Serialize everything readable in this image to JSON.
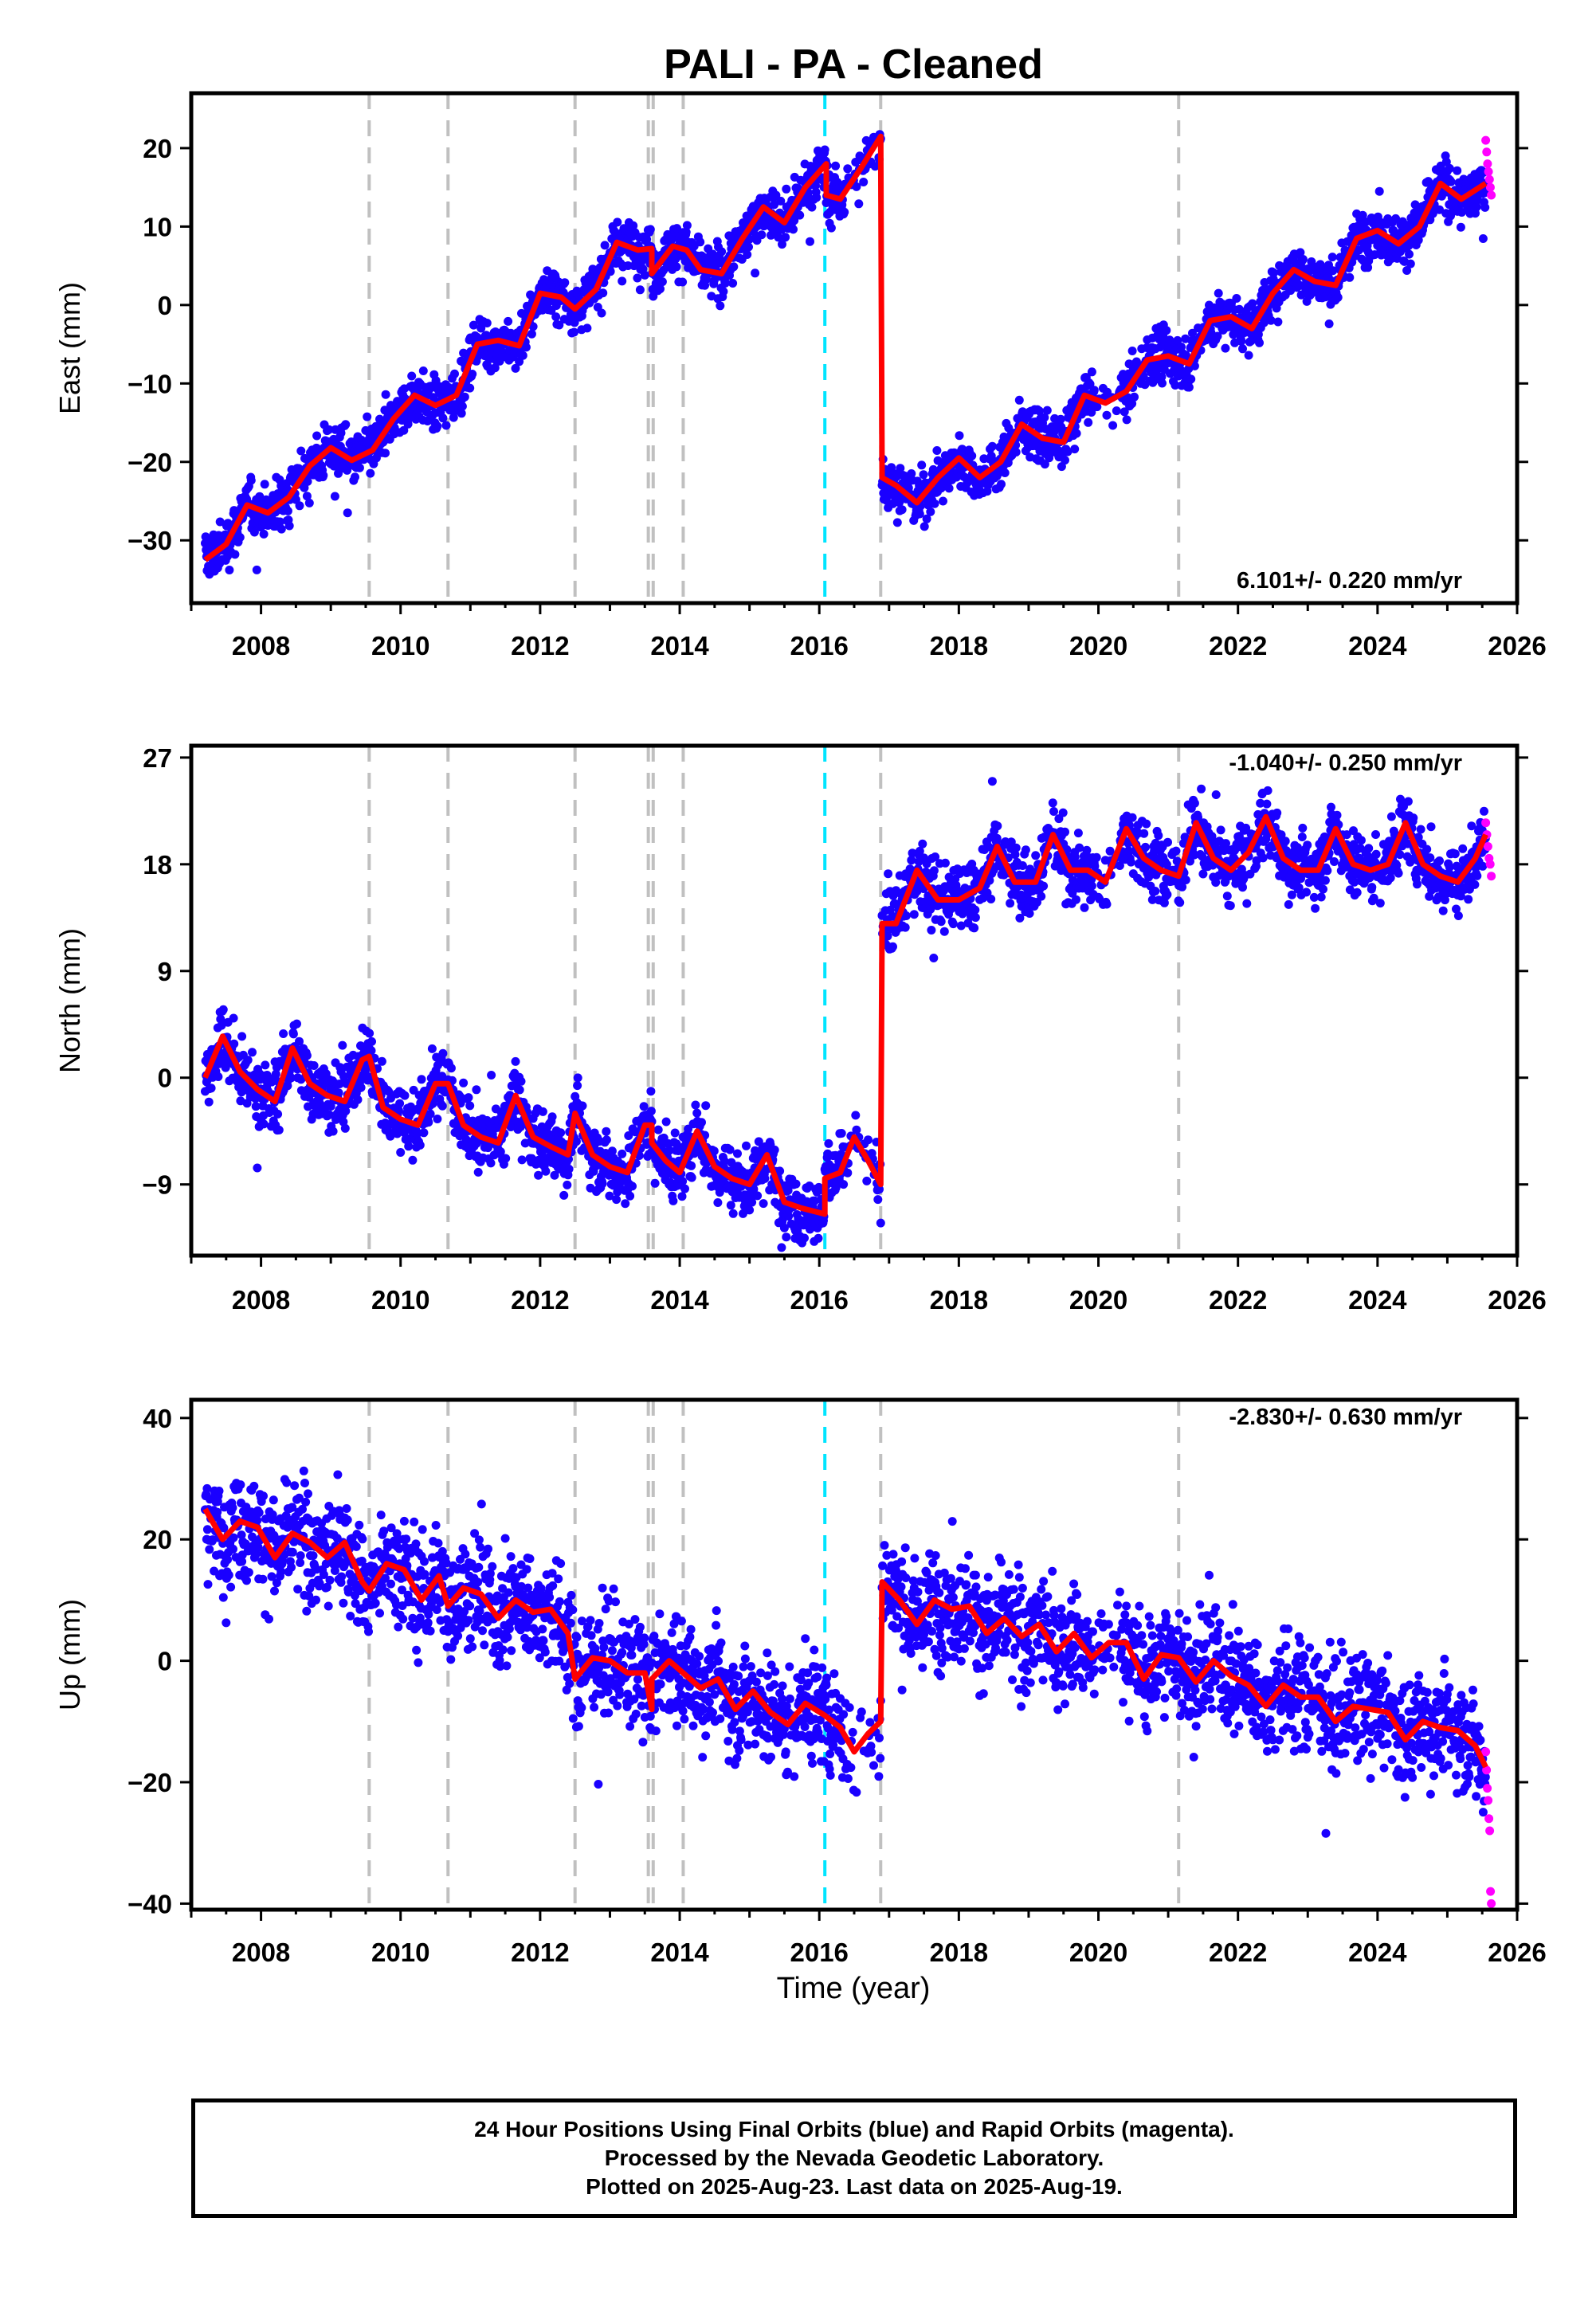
{
  "title": "PALI  - PA - Cleaned",
  "x_axis_label": "Time (year)",
  "footer": {
    "line1": "24 Hour Positions Using Final Orbits (blue) and Rapid Orbits (magenta).",
    "line2": "Processed by the Nevada Geodetic Laboratory.",
    "line3": "Plotted on 2025-Aug-23. Last data on 2025-Aug-19."
  },
  "colors": {
    "final_points": "#1a00ff",
    "rapid_points": "#ff00ff",
    "model": "#ff0000",
    "offset_gray": "#c0c0c0",
    "offset_cyan": "#00e5ff",
    "axes": "#000000"
  },
  "chart_data": [
    {
      "type": "scatter",
      "component": "east",
      "ylabel": "East (mm)",
      "rate_text": "6.101+/- 0.220 mm/yr",
      "xlim": [
        2007.0,
        2026.0
      ],
      "ylim": [
        -38,
        27
      ],
      "x_ticks": [
        2008,
        2010,
        2012,
        2014,
        2016,
        2018,
        2020,
        2022,
        2024,
        2026
      ],
      "y_ticks": [
        -30,
        -20,
        -10,
        0,
        10,
        20
      ],
      "equipment_change_lines": [
        2009.55,
        2010.68,
        2012.5,
        2013.55,
        2013.62,
        2014.05,
        2016.88,
        2021.15
      ],
      "earthquake_lines": [
        2016.08
      ],
      "model_segments": [
        {
          "x": [
            2007.2,
            2007.5,
            2007.8,
            2008.1,
            2008.4,
            2008.7,
            2009.0,
            2009.3,
            2009.6,
            2009.9,
            2010.2,
            2010.5,
            2010.8,
            2011.1,
            2011.4,
            2011.7,
            2012.0,
            2012.3,
            2012.5,
            2012.8,
            2013.1,
            2013.4,
            2013.6
          ],
          "y": [
            -32.5,
            -30.5,
            -25.5,
            -26.5,
            -24.5,
            -20.5,
            -18.2,
            -19.8,
            -18.5,
            -14.5,
            -11.5,
            -12.8,
            -11.5,
            -5.0,
            -4.5,
            -5.2,
            1.5,
            1.0,
            -0.5,
            2.0,
            8.0,
            7.0,
            7.2
          ]
        },
        {
          "x": [
            2013.6,
            2013.9,
            2014.1,
            2014.3,
            2014.6,
            2014.9,
            2015.2,
            2015.5,
            2015.8,
            2016.1
          ],
          "y": [
            4.0,
            7.5,
            7.0,
            4.5,
            4.0,
            8.5,
            12.5,
            10.5,
            15.0,
            18.0
          ]
        },
        {
          "x": [
            2016.1,
            2016.3,
            2016.6,
            2016.88
          ],
          "y": [
            14.0,
            13.5,
            17.5,
            21.5
          ]
        },
        {
          "x": [
            2016.9,
            2017.1,
            2017.4,
            2017.7,
            2018.0,
            2018.3,
            2018.6,
            2018.9,
            2019.2,
            2019.5,
            2019.8,
            2020.1,
            2020.4,
            2020.7,
            2021.0,
            2021.3,
            2021.6,
            2021.9,
            2022.2,
            2022.5,
            2022.8,
            2023.1,
            2023.4,
            2023.7,
            2024.0,
            2024.3,
            2024.6,
            2024.9,
            2025.2,
            2025.55
          ],
          "y": [
            -22.0,
            -23.0,
            -25.2,
            -22.0,
            -19.5,
            -22.0,
            -20.0,
            -15.2,
            -17.0,
            -17.5,
            -11.5,
            -12.5,
            -11.0,
            -7.0,
            -6.5,
            -7.5,
            -2.0,
            -1.5,
            -3.0,
            1.5,
            4.5,
            3.0,
            2.5,
            8.5,
            9.5,
            7.8,
            10.0,
            15.5,
            13.5,
            15.5
          ]
        }
      ],
      "scatter_model": {
        "trend": 6.101,
        "seasonal_amp": 1.8,
        "noise_sd": 1.6,
        "outlier_rate": 0.004
      },
      "rapid_points": {
        "x_start": 2025.55,
        "x_end": 2025.63,
        "y": [
          21.0,
          19.5,
          18.0,
          17.0,
          16.0,
          15.0,
          14.0
        ]
      }
    },
    {
      "type": "scatter",
      "component": "north",
      "ylabel": "North (mm)",
      "rate_text": "-1.040+/- 0.250 mm/yr",
      "xlim": [
        2007.0,
        2026.0
      ],
      "ylim": [
        -15,
        28
      ],
      "x_ticks": [
        2008,
        2010,
        2012,
        2014,
        2016,
        2018,
        2020,
        2022,
        2024,
        2026
      ],
      "y_ticks": [
        -9,
        0,
        9,
        18,
        27
      ],
      "equipment_change_lines": [
        2009.55,
        2010.68,
        2012.5,
        2013.55,
        2013.62,
        2014.05,
        2016.88,
        2021.15
      ],
      "earthquake_lines": [
        2016.08
      ],
      "model_segments": [
        {
          "x": [
            2007.2,
            2007.45,
            2007.7,
            2007.95,
            2008.2,
            2008.45,
            2008.7,
            2008.95,
            2009.2,
            2009.45,
            2009.55,
            2009.75,
            2010.0,
            2010.25,
            2010.5,
            2010.68,
            2010.9,
            2011.15,
            2011.4,
            2011.65,
            2011.9,
            2012.15,
            2012.4,
            2012.5,
            2012.75,
            2013.0,
            2013.25,
            2013.5,
            2013.6
          ],
          "y": [
            0.0,
            3.5,
            0.5,
            -1.0,
            -2.0,
            2.5,
            -0.5,
            -1.5,
            -2.0,
            1.5,
            1.8,
            -2.5,
            -3.5,
            -4.0,
            -0.5,
            -0.5,
            -4.0,
            -5.0,
            -5.5,
            -1.5,
            -5.0,
            -5.8,
            -6.5,
            -3.0,
            -6.5,
            -7.5,
            -8.0,
            -4.0,
            -4.0
          ]
        },
        {
          "x": [
            2013.6,
            2013.8,
            2014.0,
            2014.25,
            2014.5,
            2014.75,
            2015.0,
            2015.25,
            2015.5,
            2015.75,
            2016.08
          ],
          "y": [
            -5.5,
            -7.0,
            -8.0,
            -4.5,
            -7.5,
            -8.5,
            -9.0,
            -6.5,
            -10.5,
            -11.0,
            -11.5
          ]
        },
        {
          "x": [
            2016.08,
            2016.3,
            2016.5,
            2016.7,
            2016.88
          ],
          "y": [
            -8.5,
            -8.0,
            -5.0,
            -7.0,
            -9.0
          ]
        },
        {
          "x": [
            2016.9,
            2017.1,
            2017.4,
            2017.7,
            2018.0,
            2018.3,
            2018.55,
            2018.8,
            2019.1,
            2019.35,
            2019.6,
            2019.85,
            2020.1,
            2020.4,
            2020.65,
            2020.9,
            2021.15,
            2021.4,
            2021.65,
            2021.9,
            2022.15,
            2022.4,
            2022.65,
            2022.9,
            2023.15,
            2023.4,
            2023.65,
            2023.9,
            2024.15,
            2024.4,
            2024.65,
            2024.9,
            2025.15,
            2025.4,
            2025.55
          ],
          "y": [
            13.0,
            13.0,
            17.5,
            15.0,
            15.0,
            16.0,
            19.5,
            16.5,
            16.5,
            20.5,
            17.5,
            17.5,
            16.5,
            21.0,
            18.5,
            17.5,
            17.0,
            21.5,
            18.5,
            17.5,
            19.0,
            22.0,
            18.5,
            17.5,
            17.5,
            21.0,
            18.0,
            17.5,
            18.0,
            21.5,
            18.0,
            17.0,
            16.5,
            18.5,
            20.5
          ]
        }
      ],
      "scatter_model": {
        "trend": -1.04,
        "seasonal_amp": 1.5,
        "noise_sd": 1.4,
        "outlier_rate": 0.004
      },
      "rapid_points": {
        "x_start": 2025.55,
        "x_end": 2025.63,
        "y": [
          21.5,
          20.5,
          19.5,
          18.5,
          18.0,
          17.0
        ]
      }
    },
    {
      "type": "scatter",
      "component": "up",
      "ylabel": "Up (mm)",
      "rate_text": "-2.830+/- 0.630 mm/yr",
      "xlim": [
        2007.0,
        2026.0
      ],
      "ylim": [
        -41,
        43
      ],
      "x_ticks": [
        2008,
        2010,
        2012,
        2014,
        2016,
        2018,
        2020,
        2022,
        2024,
        2026
      ],
      "y_ticks": [
        -40,
        -20,
        0,
        20,
        40
      ],
      "equipment_change_lines": [
        2009.55,
        2010.68,
        2012.5,
        2013.55,
        2013.62,
        2014.05,
        2016.88,
        2021.15
      ],
      "earthquake_lines": [
        2016.08
      ],
      "model_segments": [
        {
          "x": [
            2007.2,
            2007.45,
            2007.7,
            2007.95,
            2008.2,
            2008.45,
            2008.7,
            2008.95,
            2009.2,
            2009.45,
            2009.55,
            2009.8,
            2010.05,
            2010.3,
            2010.55,
            2010.68,
            2010.9,
            2011.15,
            2011.4,
            2011.65,
            2011.9,
            2012.15,
            2012.4,
            2012.5,
            2012.75,
            2013.0,
            2013.25,
            2013.5,
            2013.6
          ],
          "y": [
            25.0,
            20.0,
            23.0,
            22.0,
            17.0,
            21.0,
            19.5,
            17.0,
            19.5,
            13.0,
            11.5,
            16.0,
            15.0,
            10.0,
            14.0,
            9.0,
            12.0,
            11.0,
            7.0,
            10.0,
            8.0,
            8.5,
            4.5,
            -3.0,
            0.5,
            0.0,
            -2.0,
            -2.0,
            -8.0
          ]
        },
        {
          "x": [
            2013.6,
            2013.85,
            2014.05,
            2014.3,
            2014.55,
            2014.8,
            2015.05,
            2015.3,
            2015.55,
            2015.8,
            2016.08
          ],
          "y": [
            -3.0,
            0.0,
            -2.0,
            -4.5,
            -3.0,
            -8.0,
            -5.0,
            -8.5,
            -10.5,
            -7.0,
            -9.0
          ]
        },
        {
          "x": [
            2016.08,
            2016.3,
            2016.5,
            2016.7,
            2016.88
          ],
          "y": [
            -9.0,
            -11.0,
            -15.0,
            -12.0,
            -10.0
          ]
        },
        {
          "x": [
            2016.9,
            2017.15,
            2017.4,
            2017.65,
            2017.9,
            2018.15,
            2018.4,
            2018.65,
            2018.9,
            2019.15,
            2019.4,
            2019.65,
            2019.9,
            2020.15,
            2020.4,
            2020.65,
            2020.9,
            2021.15,
            2021.4,
            2021.65,
            2021.9,
            2022.15,
            2022.4,
            2022.65,
            2022.9,
            2023.15,
            2023.4,
            2023.65,
            2023.9,
            2024.15,
            2024.4,
            2024.65,
            2024.9,
            2025.15,
            2025.4,
            2025.55
          ],
          "y": [
            13.0,
            10.0,
            6.0,
            10.0,
            8.5,
            9.0,
            4.5,
            7.0,
            4.0,
            6.0,
            1.5,
            4.5,
            0.5,
            3.0,
            3.0,
            -3.0,
            1.0,
            0.5,
            -3.5,
            0.0,
            -2.5,
            -4.0,
            -7.5,
            -4.0,
            -6.0,
            -6.0,
            -10.0,
            -7.5,
            -8.0,
            -8.5,
            -13.0,
            -10.0,
            -11.0,
            -11.5,
            -14.0,
            -17.5
          ]
        }
      ],
      "scatter_model": {
        "trend": -2.83,
        "seasonal_amp": 3.0,
        "noise_sd": 4.5,
        "outlier_rate": 0.008
      },
      "rapid_points": {
        "x_start": 2025.55,
        "x_end": 2025.63,
        "y": [
          -15.0,
          -18.0,
          -21.0,
          -23.0,
          -26.0,
          -28.0,
          -38.0,
          -40.0
        ]
      }
    }
  ]
}
